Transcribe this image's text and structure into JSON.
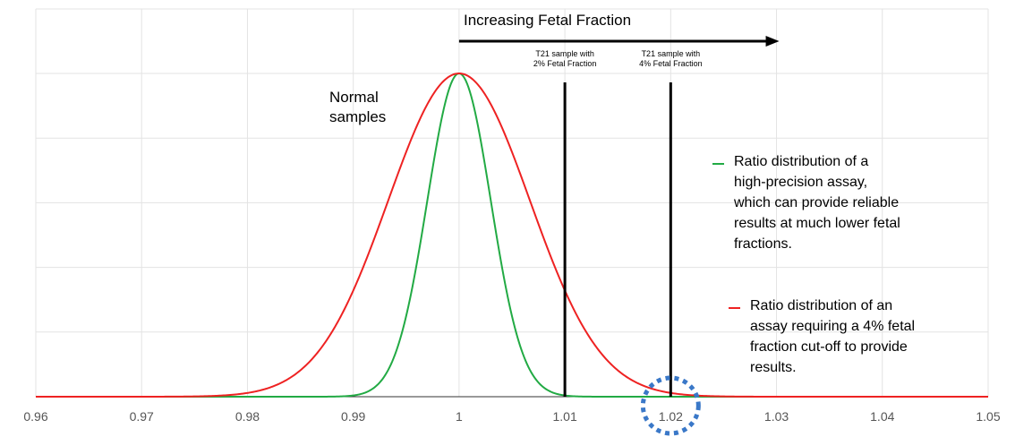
{
  "chart_data": {
    "type": "line",
    "xlim": [
      0.96,
      1.05
    ],
    "x_ticks": [
      "0.96",
      "0.97",
      "0.98",
      "0.99",
      "1",
      "1.01",
      "1.02",
      "1.03",
      "1.04",
      "1.05"
    ],
    "grid": true,
    "series": [
      {
        "name": "Ratio distribution of a high-precision assay, which can provide reliable results at much lower fetal fractions.",
        "color": "#22aa44",
        "distribution": "normal",
        "mean": 1.0,
        "sd": 0.003,
        "peak": 1
      },
      {
        "name": "Ratio distribution of an assay requiring a 4% fetal fraction cut-off to provide results.",
        "color": "#ee2222",
        "distribution": "normal",
        "mean": 1.0,
        "sd": 0.0067,
        "peak": 1
      }
    ],
    "vertical_markers": [
      {
        "x": 1.01,
        "label_lines": [
          "T21 sample with",
          "2% Fetal Fraction"
        ]
      },
      {
        "x": 1.02,
        "label_lines": [
          "T21 sample with",
          "4% Fetal Fraction"
        ]
      }
    ],
    "arrow": {
      "from": 1.0,
      "to": 1.03,
      "label": "Increasing Fetal Fraction"
    },
    "annotation": {
      "lines": [
        "Normal",
        "samples"
      ]
    },
    "highlight_circle_x": 1.02,
    "legend": [
      {
        "color": "#22aa44",
        "lines": [
          "Ratio distribution of a",
          "high-precision assay,",
          "which can provide reliable",
          "results at much lower fetal",
          "fractions."
        ]
      },
      {
        "color": "#ee2222",
        "lines": [
          "Ratio distribution of an",
          "assay requiring a 4% fetal",
          "fraction cut-off to provide",
          "results."
        ]
      }
    ],
    "highlight_color": "#3a78c8"
  }
}
